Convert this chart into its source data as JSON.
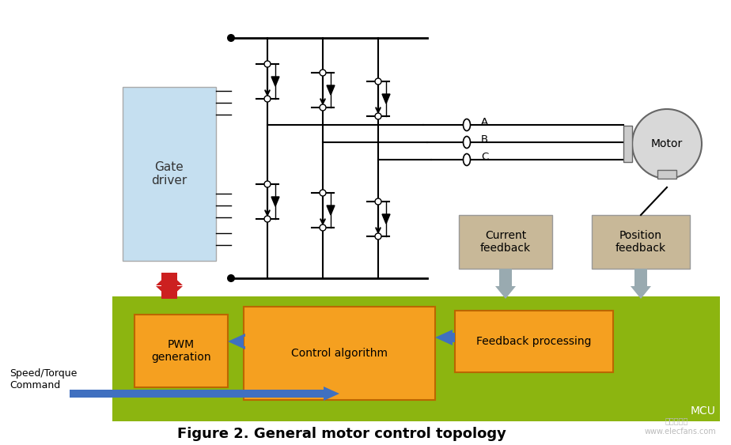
{
  "title": "Figure 2. General motor control topology",
  "bg": "#ffffff",
  "mcu_green": "#8cb510",
  "gate_blue": "#c5dff0",
  "orange": "#f5a020",
  "current_fb_bg": "#c8b898",
  "position_fb_bg": "#c8b898",
  "blue_arrow": "#4070c0",
  "red_arrow": "#cc2020",
  "gray_arrow": "#99aab0",
  "motor_gray": "#d8d8d8",
  "texts": {
    "gate_driver": "Gate\ndriver",
    "pwm": "PWM\ngeneration",
    "control_alg": "Control algorithm",
    "feedback_proc": "Feedback processing",
    "current_fb": "Current\nfeedback",
    "position_fb": "Position\nfeedback",
    "motor": "Motor",
    "mcu": "MCU",
    "speed_torque": "Speed/Torque\nCommand",
    "phases": [
      "A",
      "B",
      "C"
    ],
    "title": "Figure 2. General motor control topology",
    "watermark": "www.elecfans.com",
    "logo": "电子发烧友"
  },
  "fig_w": 9.24,
  "fig_h": 5.63,
  "dpi": 100
}
